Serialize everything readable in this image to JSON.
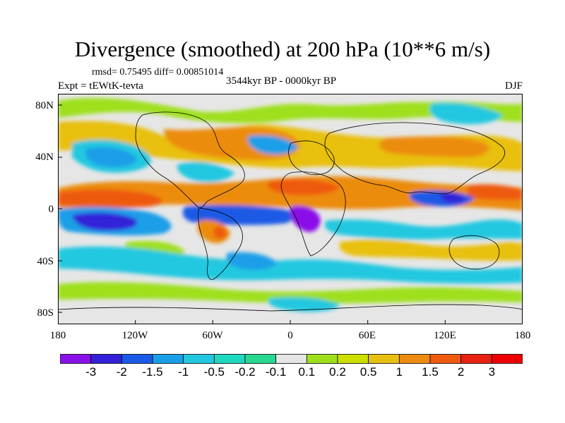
{
  "header": {
    "title": "Divergence (smoothed) at 200 hPa (10**6 m/s)",
    "stats": "rmsd= 0.75495 diff= 0.00851014",
    "expt": "Expt = tEWtK-tevta",
    "period": "3544kyr BP - 0000kyr BP",
    "season": "DJF"
  },
  "axes": {
    "lat_labels": [
      "80N",
      "40N",
      "0",
      "40S",
      "80S"
    ],
    "lon_labels": [
      "180",
      "120W",
      "60W",
      "0",
      "60E",
      "120E",
      "180"
    ]
  },
  "colorbar": {
    "labels": [
      "-3",
      "-2",
      "-1.5",
      "-1",
      "-0.5",
      "-0.2",
      "-0.1",
      "0.1",
      "0.2",
      "0.5",
      "1",
      "1.5",
      "2",
      "3"
    ],
    "colors": [
      "#8a10e8",
      "#3320d8",
      "#1a5ae6",
      "#1a9ee8",
      "#22c8e0",
      "#1ed8c0",
      "#28d890",
      "#e6e6e6",
      "#9ee01e",
      "#cce000",
      "#e8c010",
      "#ec8c10",
      "#ee5a10",
      "#e82010",
      "#ee0000"
    ]
  }
}
